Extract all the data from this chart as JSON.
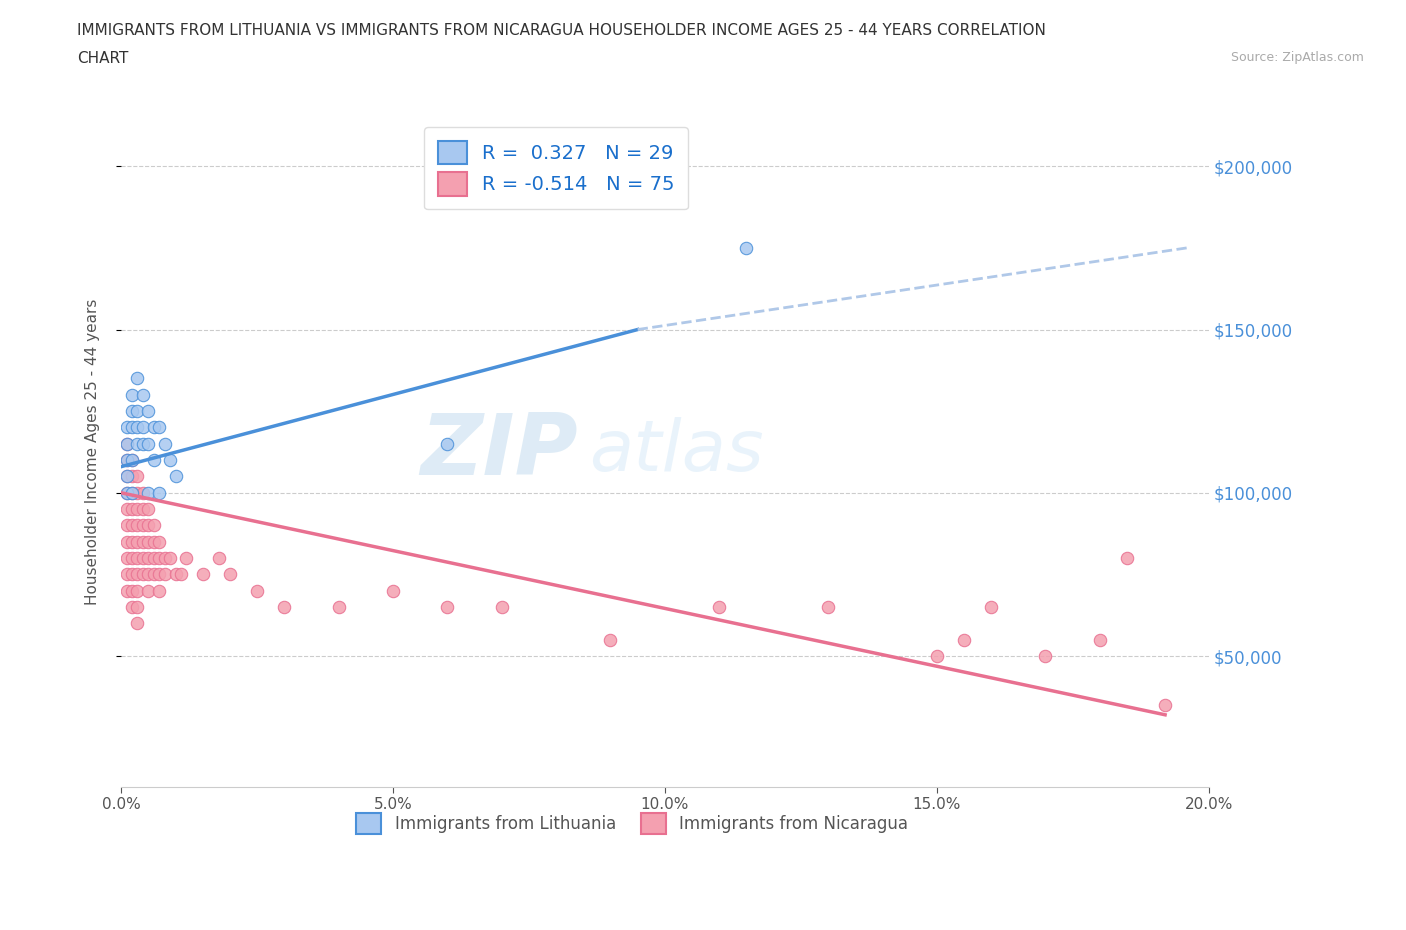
{
  "title_line1": "IMMIGRANTS FROM LITHUANIA VS IMMIGRANTS FROM NICARAGUA HOUSEHOLDER INCOME AGES 25 - 44 YEARS CORRELATION",
  "title_line2": "CHART",
  "source": "Source: ZipAtlas.com",
  "ylabel": "Householder Income Ages 25 - 44 years",
  "xmin": 0.0,
  "xmax": 0.2,
  "ymin": 10000,
  "ymax": 215000,
  "xticks": [
    0.0,
    0.05,
    0.1,
    0.15,
    0.2
  ],
  "xtick_labels": [
    "0.0%",
    "5.0%",
    "10.0%",
    "15.0%",
    "20.0%"
  ],
  "yticks": [
    50000,
    100000,
    150000,
    200000
  ],
  "ytick_labels": [
    "$50,000",
    "$100,000",
    "$150,000",
    "$200,000"
  ],
  "color_lithuania": "#a8c8f0",
  "color_nicaragua": "#f4a0b0",
  "color_line_lithuania": "#4a90d9",
  "color_line_nicaragua": "#e87090",
  "watermark_zip": "ZIP",
  "watermark_atlas": "atlas",
  "lithuania_x": [
    0.001,
    0.001,
    0.001,
    0.001,
    0.001,
    0.002,
    0.002,
    0.002,
    0.002,
    0.002,
    0.003,
    0.003,
    0.003,
    0.003,
    0.004,
    0.004,
    0.004,
    0.005,
    0.005,
    0.005,
    0.006,
    0.006,
    0.007,
    0.007,
    0.008,
    0.009,
    0.01,
    0.06,
    0.115
  ],
  "lithuania_y": [
    120000,
    115000,
    110000,
    105000,
    100000,
    130000,
    125000,
    120000,
    110000,
    100000,
    135000,
    125000,
    120000,
    115000,
    130000,
    120000,
    115000,
    125000,
    115000,
    100000,
    120000,
    110000,
    120000,
    100000,
    115000,
    110000,
    105000,
    115000,
    175000
  ],
  "nicaragua_x": [
    0.001,
    0.001,
    0.001,
    0.001,
    0.001,
    0.001,
    0.001,
    0.001,
    0.001,
    0.001,
    0.002,
    0.002,
    0.002,
    0.002,
    0.002,
    0.002,
    0.002,
    0.002,
    0.002,
    0.002,
    0.003,
    0.003,
    0.003,
    0.003,
    0.003,
    0.003,
    0.003,
    0.003,
    0.003,
    0.003,
    0.004,
    0.004,
    0.004,
    0.004,
    0.004,
    0.004,
    0.005,
    0.005,
    0.005,
    0.005,
    0.005,
    0.005,
    0.006,
    0.006,
    0.006,
    0.006,
    0.007,
    0.007,
    0.007,
    0.007,
    0.008,
    0.008,
    0.009,
    0.01,
    0.011,
    0.012,
    0.015,
    0.018,
    0.02,
    0.025,
    0.03,
    0.04,
    0.05,
    0.06,
    0.07,
    0.09,
    0.11,
    0.13,
    0.15,
    0.155,
    0.16,
    0.17,
    0.18,
    0.185,
    0.192
  ],
  "nicaragua_y": [
    115000,
    110000,
    105000,
    100000,
    95000,
    90000,
    85000,
    80000,
    75000,
    70000,
    110000,
    105000,
    100000,
    95000,
    90000,
    85000,
    80000,
    75000,
    70000,
    65000,
    105000,
    100000,
    95000,
    90000,
    85000,
    80000,
    75000,
    70000,
    65000,
    60000,
    100000,
    95000,
    90000,
    85000,
    80000,
    75000,
    95000,
    90000,
    85000,
    80000,
    75000,
    70000,
    90000,
    85000,
    80000,
    75000,
    85000,
    80000,
    75000,
    70000,
    80000,
    75000,
    80000,
    75000,
    75000,
    80000,
    75000,
    80000,
    75000,
    70000,
    65000,
    65000,
    70000,
    65000,
    65000,
    55000,
    65000,
    65000,
    50000,
    55000,
    65000,
    50000,
    55000,
    80000,
    35000
  ]
}
